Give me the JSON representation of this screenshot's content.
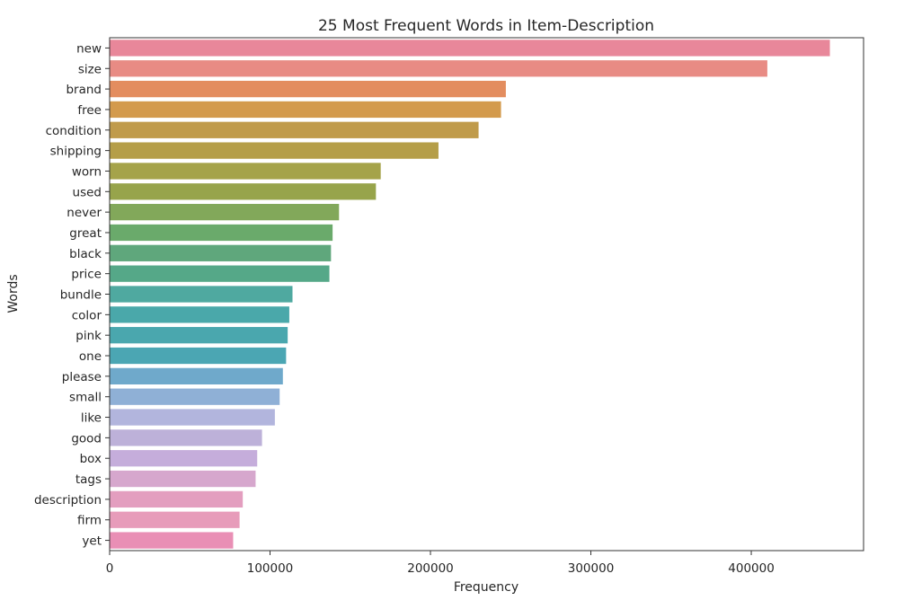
{
  "chart_data": {
    "type": "bar",
    "orientation": "horizontal",
    "title": "25 Most Frequent Words in Item-Description",
    "xlabel": "Frequency",
    "ylabel": "Words",
    "categories": [
      "new",
      "size",
      "brand",
      "free",
      "condition",
      "shipping",
      "worn",
      "used",
      "never",
      "great",
      "black",
      "price",
      "bundle",
      "color",
      "pink",
      "one",
      "please",
      "small",
      "like",
      "good",
      "box",
      "tags",
      "description",
      "firm",
      "yet"
    ],
    "values": [
      449000,
      410000,
      247000,
      244000,
      230000,
      205000,
      169000,
      166000,
      143000,
      139000,
      138000,
      137000,
      114000,
      112000,
      111000,
      110000,
      108000,
      106000,
      103000,
      95000,
      92000,
      91000,
      83000,
      81000,
      77000
    ],
    "colors": [
      "#e8879a",
      "#e88b84",
      "#e38d5f",
      "#d39a4c",
      "#c09b4b",
      "#b59e48",
      "#a5a34a",
      "#97a44b",
      "#82a85a",
      "#6aaa6b",
      "#5fa77c",
      "#55a888",
      "#4fa9a0",
      "#4aa8aa",
      "#4aa7ae",
      "#4ba6b3",
      "#6fa9cb",
      "#8fb0d6",
      "#b2b5dd",
      "#bdb1d9",
      "#c5addb",
      "#d6a7cd",
      "#e39ebf",
      "#e79cba",
      "#e98fb5"
    ],
    "xlim": [
      0,
      470000
    ],
    "xticks": [
      0,
      100000,
      200000,
      300000,
      400000
    ],
    "xtick_labels": [
      "0",
      "100000",
      "200000",
      "300000",
      "400000"
    ],
    "grid": false,
    "legend": "none"
  }
}
